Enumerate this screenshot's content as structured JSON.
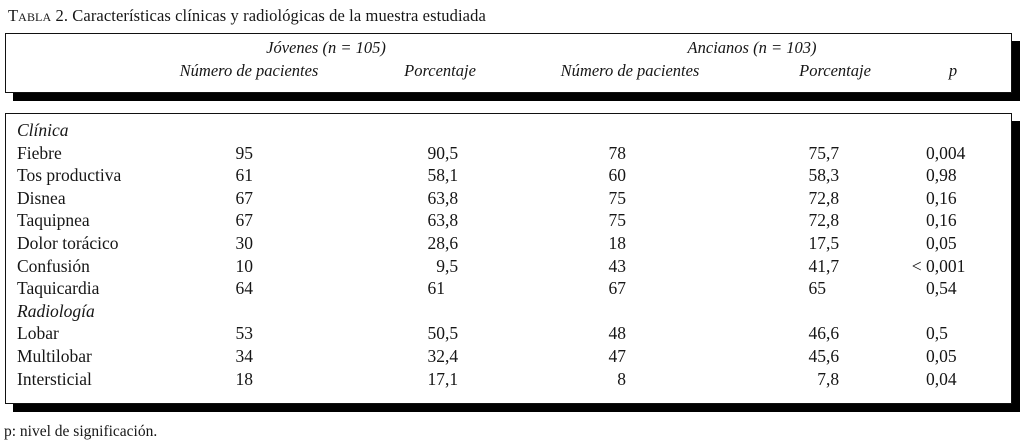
{
  "title": {
    "label": "Tabla",
    "rest": "2. Características clínicas y radiológicas de la muestra estudiada"
  },
  "table": {
    "groups": [
      {
        "label": "Jóvenes (n = 105)"
      },
      {
        "label": "Ancianos (n = 103)"
      }
    ],
    "columns": [
      "Número de pacientes",
      "Porcentaje",
      "Número de pacientes",
      "Porcentaje",
      "p"
    ],
    "rows": [
      {
        "label": "Clínica",
        "section": true,
        "j_n": "",
        "j_pct": "",
        "a_n": "",
        "a_pct": "",
        "p": ""
      },
      {
        "label": "Fiebre",
        "section": false,
        "j_n": "95",
        "j_pct": "90,5",
        "a_n": "78",
        "a_pct": "75,7",
        "p": "0,004"
      },
      {
        "label": "Tos productiva",
        "section": false,
        "j_n": "61",
        "j_pct": "58,1",
        "a_n": "60",
        "a_pct": "58,3",
        "p": "0,98"
      },
      {
        "label": "Disnea",
        "section": false,
        "j_n": "67",
        "j_pct": "63,8",
        "a_n": "75",
        "a_pct": "72,8",
        "p": "0,16"
      },
      {
        "label": "Taquipnea",
        "section": false,
        "j_n": "67",
        "j_pct": "63,8",
        "a_n": "75",
        "a_pct": "72,8",
        "p": "0,16"
      },
      {
        "label": "Dolor torácico",
        "section": false,
        "j_n": "30",
        "j_pct": "28,6",
        "a_n": "18",
        "a_pct": "17,5",
        "p": "0,05"
      },
      {
        "label": "Confusión",
        "section": false,
        "j_n": "10",
        "j_pct": "9,5",
        "a_n": "43",
        "a_pct": "41,7",
        "p": "< 0,001"
      },
      {
        "label": "Taquicardia",
        "section": false,
        "j_n": "64",
        "j_pct": "61",
        "a_n": "67",
        "a_pct": "65",
        "p": "0,54"
      },
      {
        "label": "Radiología",
        "section": true,
        "j_n": "",
        "j_pct": "",
        "a_n": "",
        "a_pct": "",
        "p": ""
      },
      {
        "label": "Lobar",
        "section": false,
        "j_n": "53",
        "j_pct": "50,5",
        "a_n": "48",
        "a_pct": "46,6",
        "p": "0,5"
      },
      {
        "label": "Multilobar",
        "section": false,
        "j_n": "34",
        "j_pct": "32,4",
        "a_n": "47",
        "a_pct": "45,6",
        "p": "0,05"
      },
      {
        "label": "Intersticial",
        "section": false,
        "j_n": "18",
        "j_pct": "17,1",
        "a_n": "8",
        "a_pct": "7,8",
        "p": "0,04"
      }
    ]
  },
  "footnote": "p: nivel de significación.",
  "colors": {
    "background": "#ffffff",
    "text": "#161616",
    "border": "#000000"
  }
}
